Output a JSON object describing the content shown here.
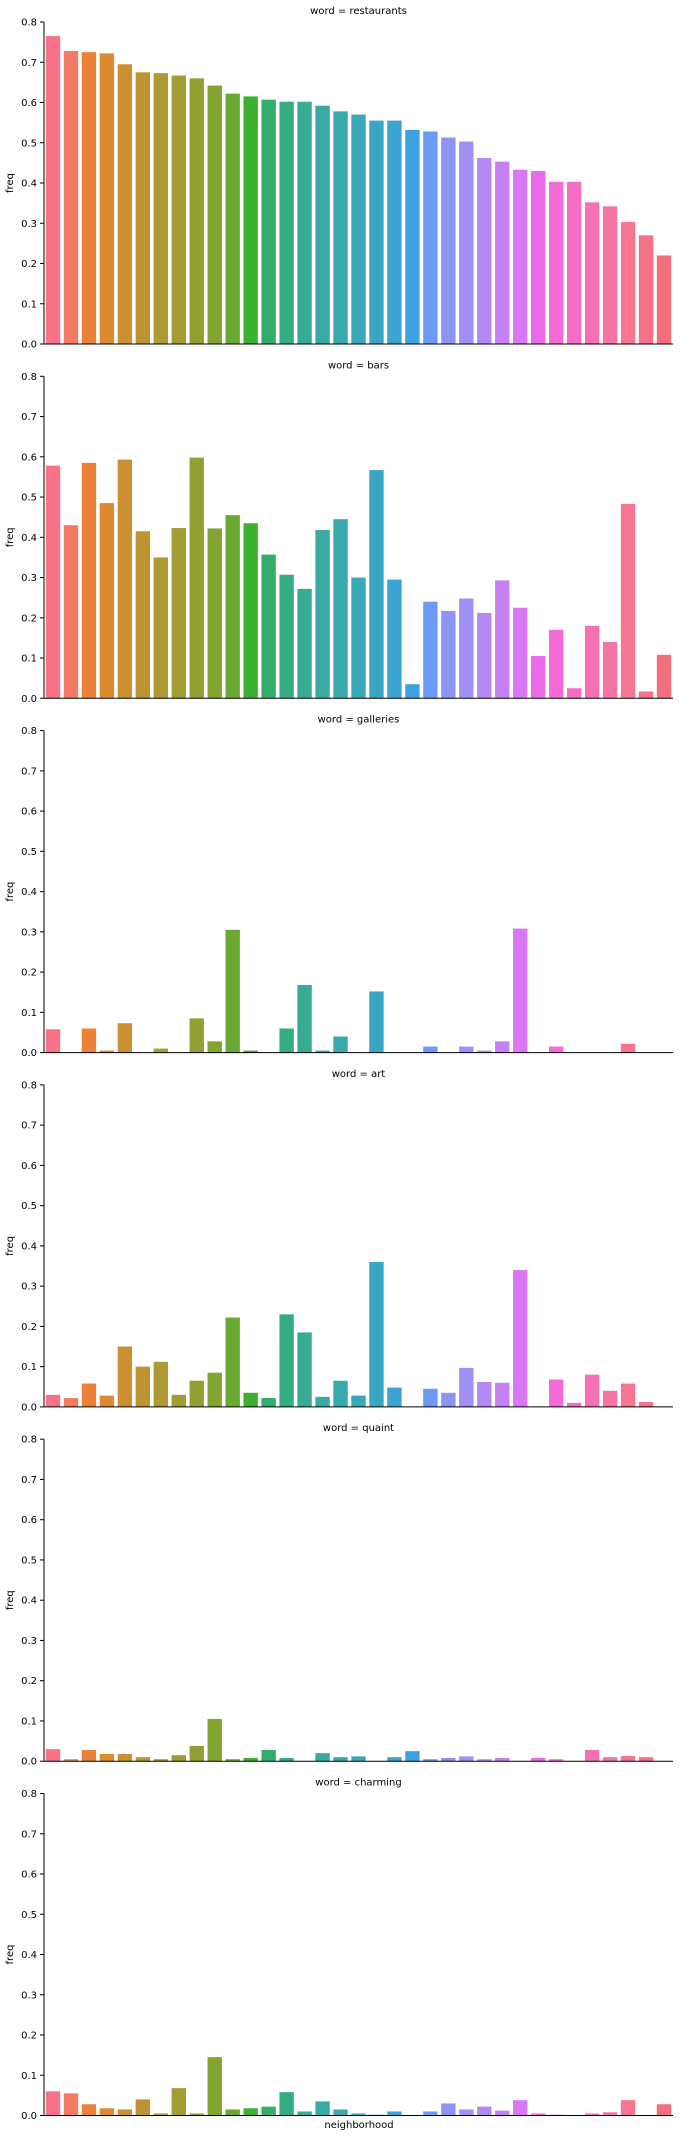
{
  "chart_data": {
    "type": "bar",
    "layout": "facet-grid-column",
    "xlabel": "neighborhood",
    "ylabel": "freq",
    "ylim": [
      0,
      0.8
    ],
    "yticks": [
      "0.0",
      "0.1",
      "0.2",
      "0.3",
      "0.4",
      "0.5",
      "0.6",
      "0.7",
      "0.8"
    ],
    "grid": false,
    "legend": "none",
    "category_count": 35,
    "palette": [
      "#f77189",
      "#f47a65",
      "#ed8137",
      "#dd8a31",
      "#cb9032",
      "#bc9532",
      "#ae9932",
      "#a19d32",
      "#93a031",
      "#82a431",
      "#6aa931",
      "#3daf31",
      "#33ae6a",
      "#35ad82",
      "#36ac93",
      "#37aaa1",
      "#38a9ad",
      "#39a8b8",
      "#3aa6c3",
      "#3ca4d0",
      "#3ea1e0",
      "#6b99f3",
      "#8c94f4",
      "#a08ff4",
      "#b389f4",
      "#c581f4",
      "#d977f4",
      "#ec6ae9",
      "#f46ad6",
      "#f56ec4",
      "#f671b4",
      "#f674a3",
      "#f7768f",
      "#f77189",
      "#f46f7e"
    ],
    "panels": [
      {
        "title": "word = restaurants",
        "values": [
          0.765,
          0.728,
          0.725,
          0.722,
          0.695,
          0.675,
          0.673,
          0.667,
          0.66,
          0.642,
          0.622,
          0.615,
          0.607,
          0.602,
          0.602,
          0.592,
          0.578,
          0.57,
          0.555,
          0.555,
          0.532,
          0.528,
          0.513,
          0.503,
          0.462,
          0.453,
          0.433,
          0.43,
          0.403,
          0.403,
          0.352,
          0.342,
          0.303,
          0.27,
          0.22
        ]
      },
      {
        "title": "word = bars",
        "values": [
          0.578,
          0.43,
          0.585,
          0.485,
          0.593,
          0.415,
          0.35,
          0.423,
          0.598,
          0.422,
          0.455,
          0.435,
          0.357,
          0.307,
          0.272,
          0.418,
          0.445,
          0.3,
          0.567,
          0.295,
          0.035,
          0.24,
          0.217,
          0.248,
          0.212,
          0.293,
          0.225,
          0.105,
          0.17,
          0.025,
          0.18,
          0.14,
          0.483,
          0.017,
          0.108
        ]
      },
      {
        "title": "word = galleries",
        "values": [
          0.058,
          0,
          0.06,
          0.005,
          0.073,
          0,
          0.01,
          0,
          0.085,
          0.028,
          0.305,
          0.005,
          0,
          0.06,
          0.168,
          0.005,
          0.04,
          0,
          0.152,
          0,
          0,
          0.015,
          0,
          0.015,
          0.005,
          0.028,
          0.308,
          0,
          0.015,
          0,
          0,
          0,
          0.022,
          0,
          0
        ]
      },
      {
        "title": "word = art",
        "values": [
          0.03,
          0.022,
          0.058,
          0.028,
          0.15,
          0.1,
          0.112,
          0.03,
          0.065,
          0.085,
          0.222,
          0.035,
          0.022,
          0.23,
          0.185,
          0.025,
          0.065,
          0.028,
          0.36,
          0.048,
          0,
          0.045,
          0.035,
          0.097,
          0.062,
          0.06,
          0.34,
          0,
          0.068,
          0.01,
          0.08,
          0.04,
          0.058,
          0.012,
          0
        ]
      },
      {
        "title": "word = quaint",
        "values": [
          0.03,
          0.005,
          0.028,
          0.018,
          0.018,
          0.01,
          0.005,
          0.015,
          0.038,
          0.105,
          0.005,
          0.008,
          0.028,
          0.008,
          0,
          0.02,
          0.01,
          0.012,
          0,
          0.01,
          0.025,
          0.005,
          0.008,
          0.012,
          0.005,
          0.008,
          0,
          0.008,
          0.005,
          0,
          0.028,
          0.01,
          0.013,
          0.01,
          0
        ]
      },
      {
        "title": "word = charming",
        "values": [
          0.06,
          0.055,
          0.028,
          0.018,
          0.015,
          0.04,
          0.005,
          0.068,
          0.005,
          0.145,
          0.015,
          0.018,
          0.022,
          0.058,
          0.01,
          0.035,
          0.015,
          0.005,
          0.002,
          0.01,
          0,
          0.01,
          0.03,
          0.015,
          0.022,
          0.012,
          0.038,
          0.005,
          0.002,
          0,
          0.005,
          0.008,
          0.038,
          0,
          0.028
        ]
      }
    ]
  }
}
